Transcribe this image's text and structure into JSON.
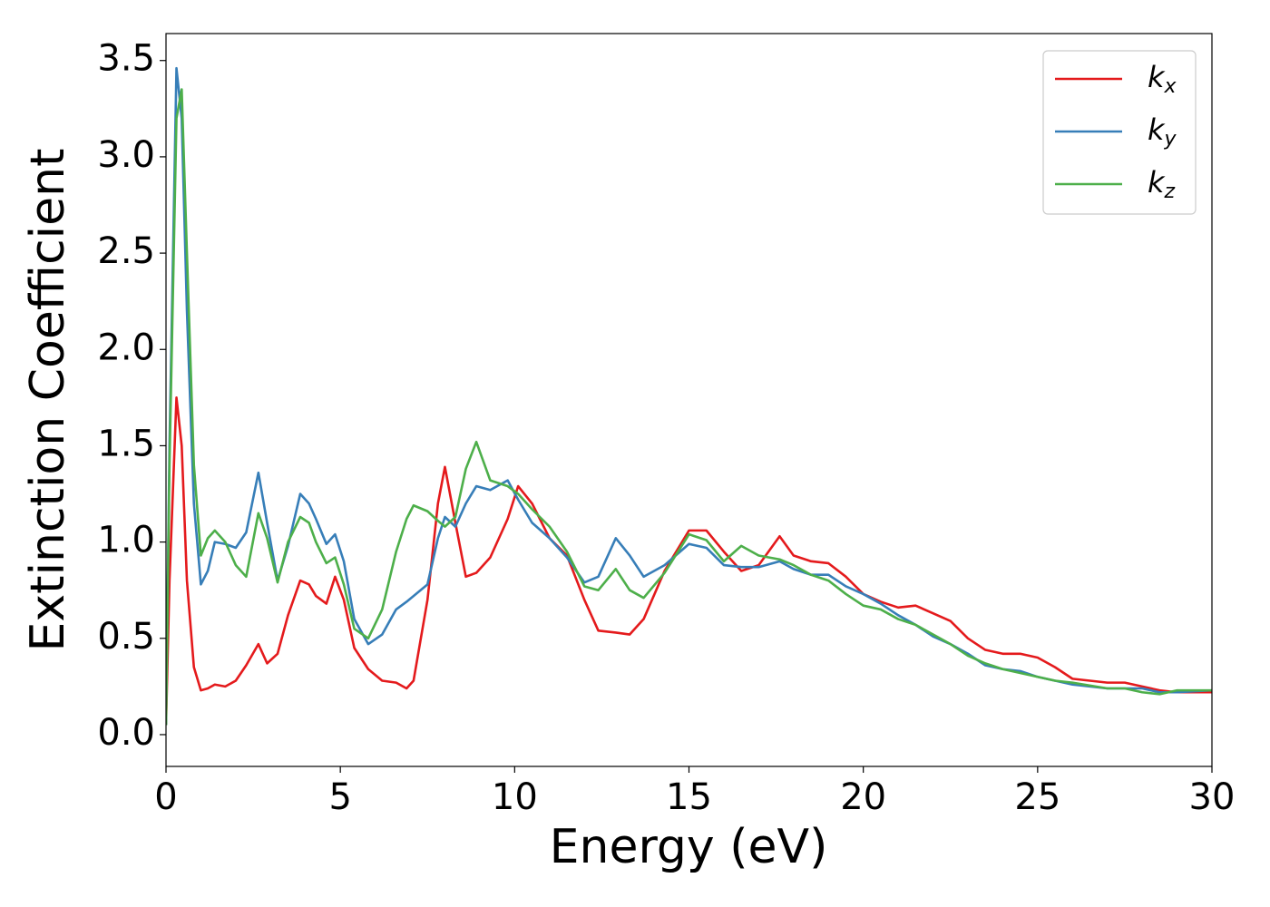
{
  "chart_data": {
    "type": "line",
    "x_label": "Energy (eV)",
    "y_label": "Extinction Coefficient",
    "xlim": [
      0,
      30
    ],
    "ylim": [
      -0.165,
      3.64
    ],
    "xticks": [
      0,
      5,
      10,
      15,
      20,
      25,
      30
    ],
    "yticks": [
      {
        "value": 0,
        "label": "0.0"
      },
      {
        "value": 0.5,
        "label": "0.5"
      },
      {
        "value": 1,
        "label": "1.0"
      },
      {
        "value": 1.5,
        "label": "1.5"
      },
      {
        "value": 2,
        "label": "2.0"
      },
      {
        "value": 2.5,
        "label": "2.5"
      },
      {
        "value": 3,
        "label": "3.0"
      },
      {
        "value": 3.5,
        "label": "3.5"
      }
    ],
    "legend": "upper right",
    "x": [
      0,
      0.1,
      0.3,
      0.45,
      0.6,
      0.8,
      1.0,
      1.2,
      1.4,
      1.7,
      2.0,
      2.3,
      2.65,
      2.9,
      3.2,
      3.5,
      3.85,
      4.1,
      4.3,
      4.6,
      4.85,
      5.1,
      5.4,
      5.8,
      6.2,
      6.6,
      6.9,
      7.1,
      7.5,
      7.8,
      8.0,
      8.3,
      8.6,
      8.9,
      9.3,
      9.8,
      10.1,
      10.5,
      11.0,
      11.5,
      12.0,
      12.4,
      12.9,
      13.3,
      13.7,
      14.3,
      15.0,
      15.5,
      16.0,
      16.5,
      17.0,
      17.6,
      18.0,
      18.5,
      19.0,
      19.5,
      20.0,
      20.5,
      21.0,
      21.5,
      22.0,
      22.5,
      23.0,
      23.5,
      24.0,
      24.5,
      25.0,
      25.5,
      26.0,
      27.0,
      27.5,
      28.0,
      28.5,
      29.0,
      30.0
    ],
    "series": [
      {
        "name": "kx",
        "color": "#e41a1c",
        "values": [
          0.05,
          0.8,
          1.75,
          1.5,
          0.8,
          0.35,
          0.23,
          0.24,
          0.26,
          0.25,
          0.28,
          0.36,
          0.47,
          0.37,
          0.42,
          0.62,
          0.8,
          0.78,
          0.72,
          0.68,
          0.82,
          0.7,
          0.45,
          0.34,
          0.28,
          0.27,
          0.24,
          0.28,
          0.7,
          1.2,
          1.39,
          1.1,
          0.82,
          0.84,
          0.92,
          1.12,
          1.29,
          1.2,
          1.02,
          0.93,
          0.7,
          0.54,
          0.53,
          0.52,
          0.6,
          0.85,
          1.06,
          1.06,
          0.95,
          0.85,
          0.88,
          1.03,
          0.93,
          0.9,
          0.89,
          0.82,
          0.73,
          0.69,
          0.66,
          0.67,
          0.63,
          0.59,
          0.5,
          0.44,
          0.42,
          0.42,
          0.4,
          0.35,
          0.29,
          0.27,
          0.27,
          0.25,
          0.23,
          0.22,
          0.22
        ]
      },
      {
        "name": "ky",
        "color": "#377eb8",
        "values": [
          0.05,
          1.5,
          3.46,
          3.2,
          2.2,
          1.2,
          0.78,
          0.85,
          1.0,
          0.99,
          0.97,
          1.05,
          1.36,
          1.1,
          0.8,
          0.98,
          1.25,
          1.2,
          1.12,
          0.99,
          1.04,
          0.9,
          0.6,
          0.47,
          0.52,
          0.65,
          0.69,
          0.72,
          0.78,
          1.02,
          1.13,
          1.08,
          1.2,
          1.29,
          1.27,
          1.32,
          1.22,
          1.1,
          1.02,
          0.92,
          0.79,
          0.82,
          1.02,
          0.93,
          0.82,
          0.88,
          0.99,
          0.97,
          0.88,
          0.87,
          0.87,
          0.9,
          0.86,
          0.83,
          0.83,
          0.77,
          0.73,
          0.68,
          0.62,
          0.57,
          0.51,
          0.47,
          0.42,
          0.36,
          0.34,
          0.33,
          0.3,
          0.28,
          0.26,
          0.24,
          0.24,
          0.24,
          0.22,
          0.22,
          0.23
        ]
      },
      {
        "name": "kz",
        "color": "#4daf4a",
        "values": [
          0.05,
          1.4,
          3.2,
          3.35,
          2.5,
          1.4,
          0.93,
          1.02,
          1.06,
          1.0,
          0.88,
          0.82,
          1.15,
          1.02,
          0.79,
          1.0,
          1.13,
          1.1,
          1.0,
          0.89,
          0.92,
          0.78,
          0.55,
          0.5,
          0.65,
          0.95,
          1.12,
          1.19,
          1.16,
          1.11,
          1.08,
          1.13,
          1.38,
          1.52,
          1.32,
          1.29,
          1.25,
          1.17,
          1.08,
          0.95,
          0.77,
          0.75,
          0.86,
          0.75,
          0.71,
          0.84,
          1.04,
          1.01,
          0.9,
          0.98,
          0.93,
          0.91,
          0.88,
          0.83,
          0.8,
          0.73,
          0.67,
          0.65,
          0.6,
          0.57,
          0.52,
          0.47,
          0.41,
          0.37,
          0.34,
          0.32,
          0.3,
          0.28,
          0.27,
          0.24,
          0.24,
          0.22,
          0.21,
          0.23,
          0.23
        ]
      }
    ]
  }
}
